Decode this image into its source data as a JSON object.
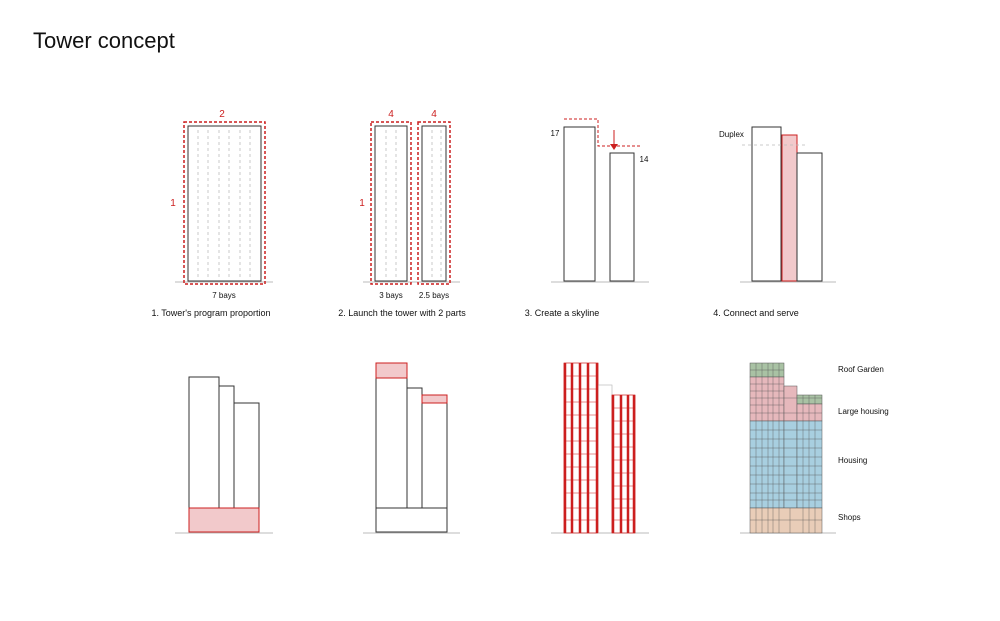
{
  "page": {
    "title": "Tower concept"
  },
  "colors": {
    "accent": "#cc1f1f",
    "fill_pink": "#f2c9cb",
    "line": "#333333",
    "guide": "#bbbbbb",
    "roof": "#a9c2a4",
    "large": "#e6b8bc",
    "housing": "#a8cfe0",
    "shops": "#e9cdb8"
  },
  "steps": {
    "s1": {
      "caption": "1. Tower's program proportion",
      "dim_top": "2",
      "dim_left": "1",
      "dim_bottom": "7 bays"
    },
    "s2": {
      "caption": "2. Launch the tower with 2 parts",
      "dim_top_a": "4",
      "dim_top_b": "4",
      "dim_left": "1",
      "dim_bottom_a": "3 bays",
      "dim_bottom_b": "2.5 bays"
    },
    "s3": {
      "caption": "3. Create a skyline",
      "height_a": "17",
      "height_b": "14"
    },
    "s4": {
      "caption": "4. Connect and serve",
      "label": "Duplex"
    }
  },
  "legend": {
    "roof": "Roof Garden",
    "large": "Large housing",
    "housing": "Housing",
    "shops": "Shops"
  }
}
